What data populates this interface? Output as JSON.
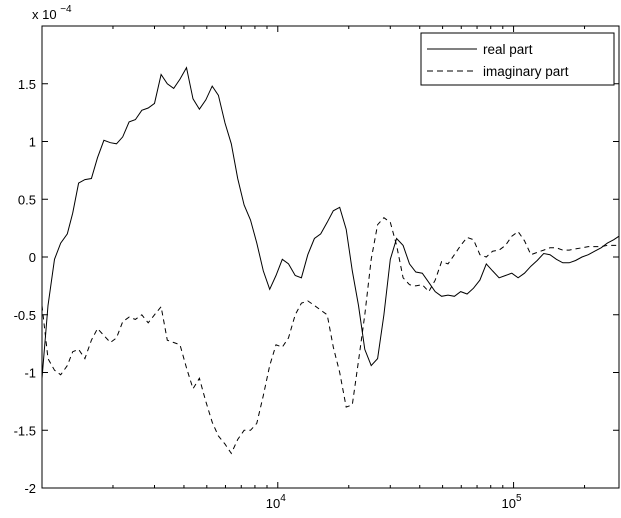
{
  "chart_data": {
    "type": "line",
    "title": "",
    "xlabel": "",
    "ylabel": "",
    "x_scale": "log",
    "xlim": [
      1000,
      280000
    ],
    "ylim": [
      -2.0,
      2.0
    ],
    "y_multiplier_label": "x 10",
    "y_multiplier_exponent": "−4",
    "y_ticks": [
      -2,
      -1.5,
      -1,
      -0.5,
      0,
      0.5,
      1,
      1.5
    ],
    "y_tick_labels": [
      "-2",
      "-1.5",
      "-1",
      "-0.5",
      "0",
      "0.5",
      "1",
      "1.5"
    ],
    "x_ticks": [
      10000,
      100000
    ],
    "x_tick_labels": [
      {
        "base": "10",
        "exp": "4"
      },
      {
        "base": "10",
        "exp": "5"
      }
    ],
    "legend_position": "top-right",
    "grid": false,
    "series": [
      {
        "name": "real part",
        "style": "solid",
        "color": "#000000",
        "x": [
          1000,
          1060,
          1130,
          1200,
          1280,
          1350,
          1430,
          1520,
          1620,
          1720,
          1830,
          1950,
          2070,
          2200,
          2340,
          2490,
          2650,
          2820,
          3000,
          3200,
          3400,
          3620,
          3850,
          4100,
          4370,
          4650,
          4950,
          5270,
          5600,
          5970,
          6350,
          6760,
          7200,
          7660,
          8150,
          8680,
          9240,
          9830,
          10450,
          11100,
          11850,
          12600,
          13400,
          14300,
          15200,
          16200,
          17200,
          18300,
          19500,
          20700,
          22000,
          23400,
          24900,
          26500,
          28200,
          30000,
          31900,
          34000,
          36200,
          38500,
          41000,
          43700,
          46500,
          49500,
          52700,
          56100,
          59700,
          63500,
          67600,
          72000,
          76600,
          81500,
          86800,
          92400,
          98300,
          104500,
          111300,
          118400,
          126000,
          134200,
          142800,
          152000,
          161800,
          172200,
          183300,
          195000,
          207500,
          220800,
          235000,
          250100,
          266100,
          280000
        ],
        "y": [
          -1.05,
          -0.42,
          -0.02,
          0.12,
          0.2,
          0.38,
          0.64,
          0.67,
          0.68,
          0.86,
          1.01,
          0.99,
          0.98,
          1.04,
          1.17,
          1.19,
          1.27,
          1.29,
          1.33,
          1.58,
          1.5,
          1.46,
          1.54,
          1.64,
          1.37,
          1.28,
          1.36,
          1.48,
          1.4,
          1.16,
          0.98,
          0.68,
          0.45,
          0.32,
          0.12,
          -0.12,
          -0.28,
          -0.16,
          -0.02,
          -0.06,
          -0.16,
          -0.18,
          0.02,
          0.16,
          0.2,
          0.3,
          0.4,
          0.43,
          0.24,
          -0.12,
          -0.42,
          -0.8,
          -0.94,
          -0.88,
          -0.5,
          -0.02,
          0.16,
          0.1,
          -0.06,
          -0.13,
          -0.14,
          -0.22,
          -0.3,
          -0.34,
          -0.33,
          -0.34,
          -0.3,
          -0.32,
          -0.27,
          -0.2,
          -0.06,
          -0.12,
          -0.18,
          -0.16,
          -0.14,
          -0.18,
          -0.14,
          -0.08,
          -0.03,
          0.03,
          0.02,
          -0.02,
          -0.05,
          -0.05,
          -0.03,
          0.0,
          0.02,
          0.05,
          0.08,
          0.12,
          0.15,
          0.18
        ]
      },
      {
        "name": "imaginary part",
        "style": "dashed",
        "color": "#000000",
        "x": [
          1000,
          1060,
          1130,
          1200,
          1280,
          1350,
          1430,
          1520,
          1620,
          1720,
          1830,
          1950,
          2070,
          2200,
          2340,
          2490,
          2650,
          2820,
          3000,
          3200,
          3400,
          3620,
          3850,
          4100,
          4370,
          4650,
          4950,
          5270,
          5600,
          5970,
          6350,
          6760,
          7200,
          7660,
          8150,
          8680,
          9240,
          9830,
          10450,
          11100,
          11850,
          12600,
          13400,
          14300,
          15200,
          16200,
          17200,
          18300,
          19500,
          20700,
          22000,
          23400,
          24900,
          26500,
          28200,
          30000,
          31900,
          34000,
          36200,
          38500,
          41000,
          43700,
          46500,
          49500,
          52700,
          56100,
          59700,
          63500,
          67600,
          72000,
          76600,
          81500,
          86800,
          92400,
          98300,
          104500,
          111300,
          118400,
          126000,
          134200,
          142800,
          152000,
          161800,
          172200,
          183300,
          195000,
          207500,
          220800,
          235000,
          250100,
          266100,
          280000
        ],
        "y": [
          -0.42,
          -0.88,
          -0.98,
          -1.02,
          -0.94,
          -0.82,
          -0.8,
          -0.88,
          -0.72,
          -0.62,
          -0.68,
          -0.74,
          -0.7,
          -0.56,
          -0.52,
          -0.54,
          -0.5,
          -0.57,
          -0.5,
          -0.43,
          -0.72,
          -0.74,
          -0.76,
          -0.96,
          -1.14,
          -1.05,
          -1.25,
          -1.43,
          -1.55,
          -1.62,
          -1.7,
          -1.58,
          -1.5,
          -1.5,
          -1.44,
          -1.2,
          -0.94,
          -0.76,
          -0.78,
          -0.7,
          -0.5,
          -0.4,
          -0.38,
          -0.42,
          -0.46,
          -0.5,
          -0.78,
          -1.0,
          -1.3,
          -1.28,
          -0.9,
          -0.5,
          -0.02,
          0.28,
          0.34,
          0.3,
          0.1,
          -0.18,
          -0.24,
          -0.25,
          -0.24,
          -0.3,
          -0.2,
          -0.04,
          -0.06,
          0.02,
          0.1,
          0.17,
          0.15,
          0.02,
          0.0,
          0.05,
          0.06,
          0.1,
          0.18,
          0.22,
          0.14,
          0.02,
          0.04,
          0.06,
          0.08,
          0.08,
          0.06,
          0.06,
          0.07,
          0.08,
          0.09,
          0.09,
          0.09,
          0.1,
          0.1,
          0.1
        ]
      }
    ]
  }
}
